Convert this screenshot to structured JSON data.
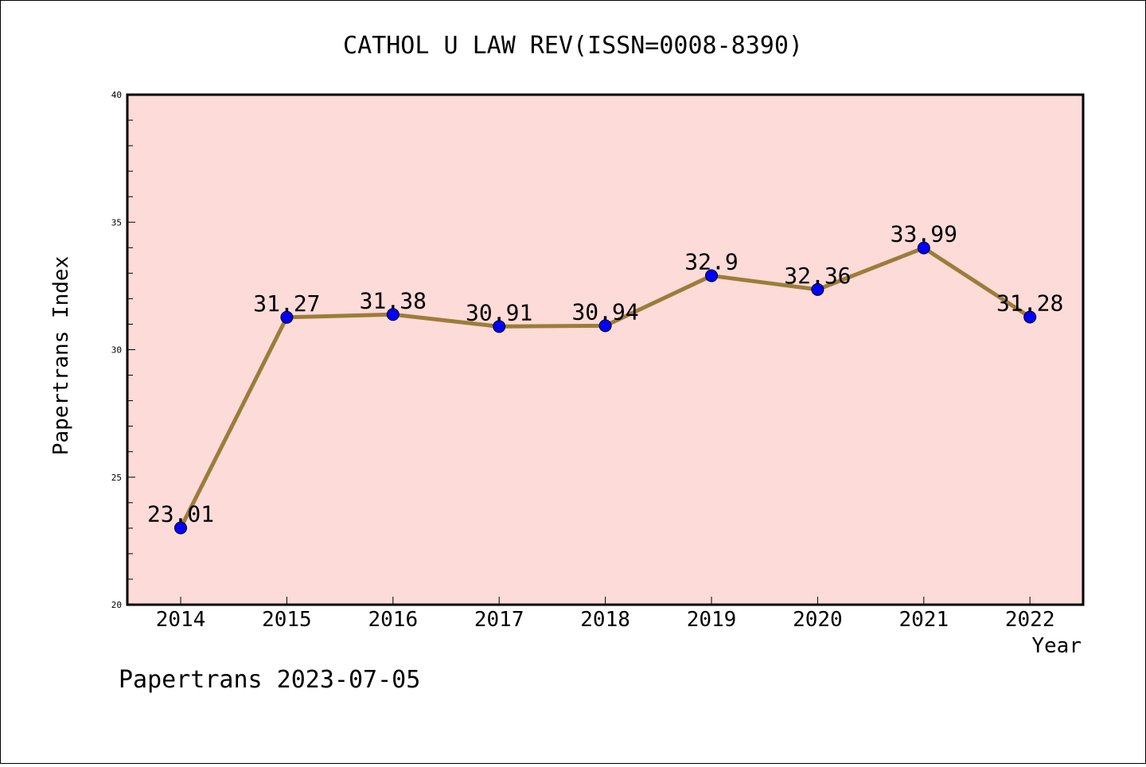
{
  "chart_data": {
    "type": "line",
    "title": "CATHOL U LAW REV(ISSN=0008-8390)",
    "xlabel": "Year",
    "ylabel": "Papertrans Index",
    "categories": [
      "2014",
      "2015",
      "2016",
      "2017",
      "2018",
      "2019",
      "2020",
      "2021",
      "2022"
    ],
    "series": [
      {
        "values": [
          23.01,
          31.27,
          31.38,
          30.91,
          30.94,
          32.9,
          32.36,
          33.99,
          31.28
        ],
        "labels": [
          "23.01",
          "31.27",
          "31.38",
          "30.91",
          "30.94",
          "32.9",
          "32.36",
          "33.99",
          "31.28"
        ]
      }
    ],
    "ylim": [
      20,
      40
    ],
    "yticks": [
      "20",
      "25",
      "30",
      "35",
      "40"
    ],
    "grid": false,
    "colors": {
      "plot_background": "#fddbd8",
      "line": "#9b7d3a",
      "marker": "#0000ff"
    }
  },
  "footer": {
    "text": "Papertrans 2023-07-05"
  }
}
